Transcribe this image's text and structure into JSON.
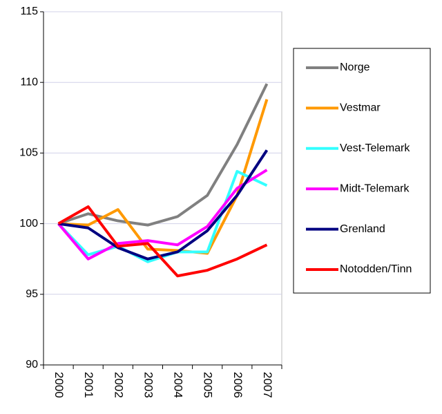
{
  "chart_data": {
    "type": "line",
    "categories": [
      "2000",
      "2001",
      "2002",
      "2003",
      "2004",
      "2005",
      "2006",
      "2007"
    ],
    "series": [
      {
        "name": "Norge",
        "color": "#808080",
        "values": [
          100,
          100.7,
          100.2,
          99.9,
          100.5,
          102.0,
          105.6,
          109.9
        ]
      },
      {
        "name": "Vestmar",
        "color": "#ff9900",
        "values": [
          100,
          99.9,
          101.0,
          98.2,
          98.1,
          97.9,
          102.0,
          108.8
        ]
      },
      {
        "name": "Vest-Telemark",
        "color": "#33ffff",
        "values": [
          100,
          97.8,
          98.4,
          97.3,
          98.0,
          98.0,
          103.7,
          102.7
        ]
      },
      {
        "name": "Midt-Telemark",
        "color": "#ff00ff",
        "values": [
          100,
          97.5,
          98.6,
          98.8,
          98.5,
          99.8,
          102.5,
          103.8
        ]
      },
      {
        "name": "Grenland",
        "color": "#000080",
        "values": [
          100,
          99.7,
          98.3,
          97.5,
          98.0,
          99.5,
          102.0,
          105.2
        ]
      },
      {
        "name": "Notodden/Tinn",
        "color": "#ff0000",
        "values": [
          100,
          101.2,
          98.4,
          98.6,
          96.3,
          96.7,
          97.5,
          98.5
        ]
      }
    ],
    "ylim": [
      90,
      115
    ],
    "yticks": [
      90,
      95,
      100,
      105,
      110,
      115
    ],
    "grid": true
  }
}
